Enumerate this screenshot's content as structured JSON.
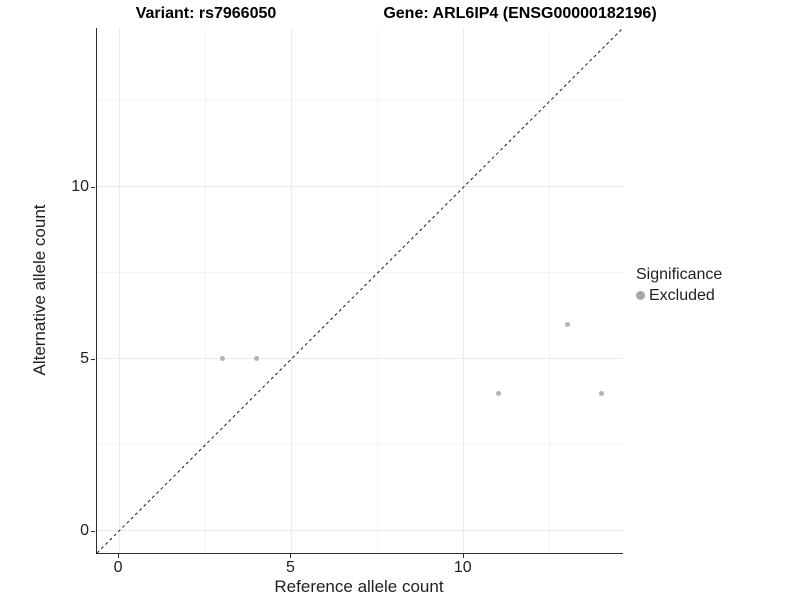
{
  "title": {
    "variant": "Variant: rs7966050",
    "gene": "Gene: ARL6IP4 (ENSG00000182196)"
  },
  "chart_data": {
    "type": "scatter",
    "title": "Variant: rs7966050   Gene: ARL6IP4 (ENSG00000182196)",
    "xlabel": "Reference allele count",
    "ylabel": "Alternative allele count",
    "xlim": [
      -0.64,
      14.62
    ],
    "ylim": [
      -0.64,
      14.62
    ],
    "x_ticks": [
      0,
      5,
      10
    ],
    "y_ticks": [
      0,
      5,
      10
    ],
    "x_minor_ticks": [
      2.5,
      7.5,
      12.5
    ],
    "y_minor_ticks": [
      2.5,
      7.5,
      12.5
    ],
    "grid": true,
    "series": [
      {
        "name": "Excluded",
        "color": "#b3b3b3",
        "points": [
          [
            3,
            5
          ],
          [
            4,
            5
          ],
          [
            11,
            4
          ],
          [
            13,
            6
          ],
          [
            14,
            4
          ]
        ]
      }
    ],
    "reference_line": {
      "type": "identity",
      "style": "dashed",
      "color": "#1a1a1a"
    },
    "legend": {
      "title": "Significance",
      "position": "right",
      "items": [
        {
          "label": "Excluded",
          "color": "#a8a8a8"
        }
      ]
    }
  },
  "colors": {
    "background": "#ffffff",
    "axis_line": "#2e2e2e",
    "grid_major": "#ebebeb",
    "grid_minor": "#f4f4f4",
    "point": "#b3b3b3",
    "reference_line": "#1a1a1a"
  }
}
